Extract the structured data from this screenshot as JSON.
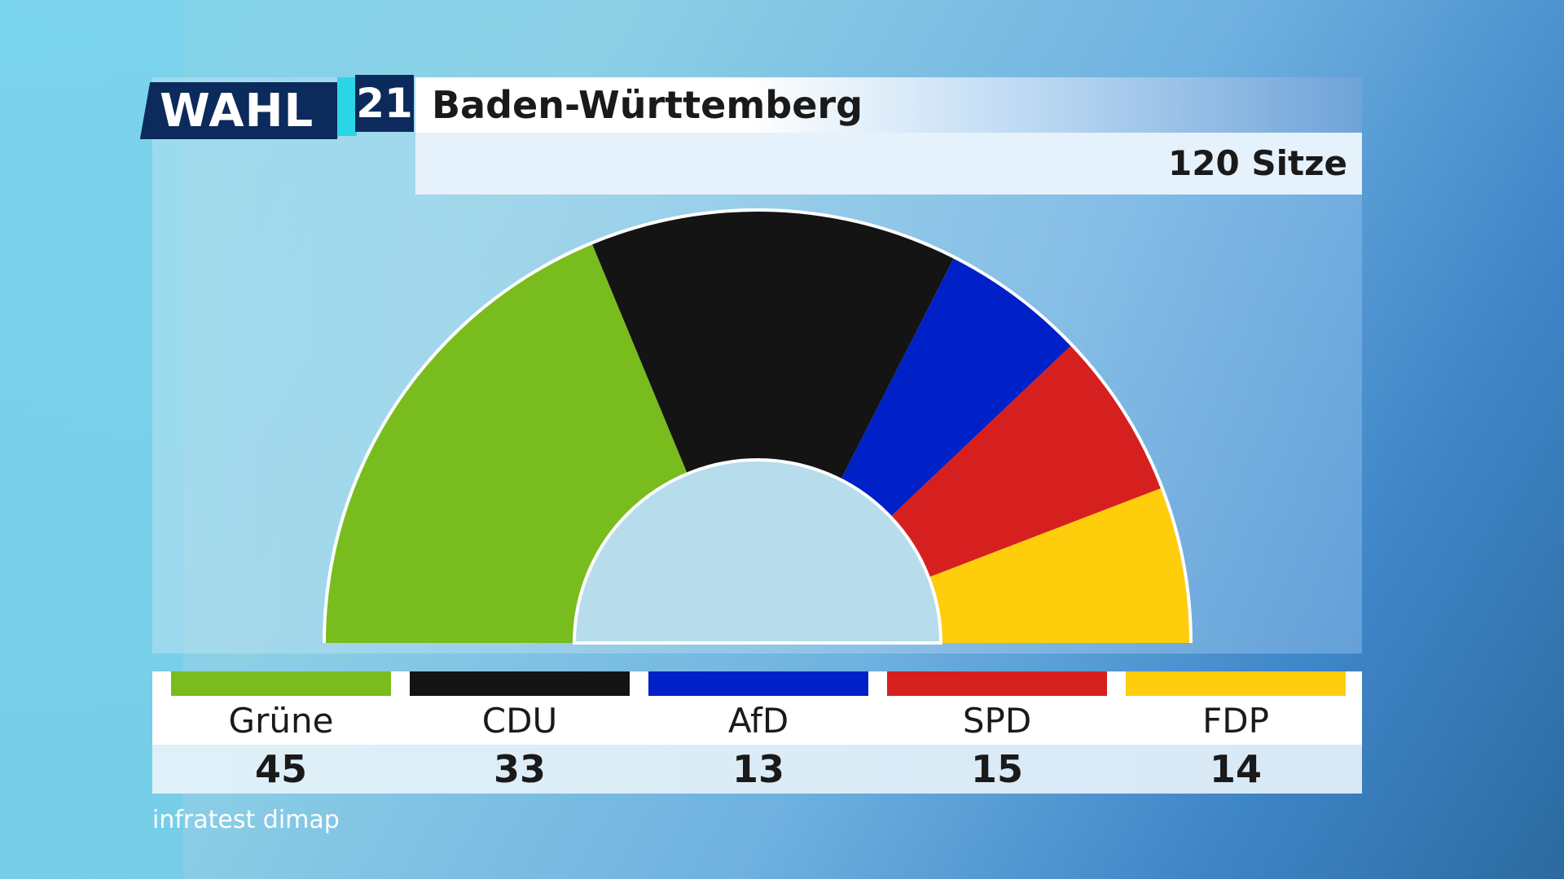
{
  "header": {
    "logo_text": "WAHL",
    "logo_number": "21",
    "title": "Baden-Württemberg",
    "subtitle": "120 Sitze"
  },
  "source": "infratest dimap",
  "chart_data": {
    "type": "pie",
    "variant": "semicircle-seat-distribution",
    "total": 120,
    "categories": [
      "Grüne",
      "CDU",
      "AfD",
      "SPD",
      "FDP"
    ],
    "values": [
      45,
      33,
      13,
      15,
      14
    ],
    "colors": [
      "#78bc1d",
      "#141414",
      "#0020c8",
      "#d62020",
      "#fecd0b"
    ]
  }
}
